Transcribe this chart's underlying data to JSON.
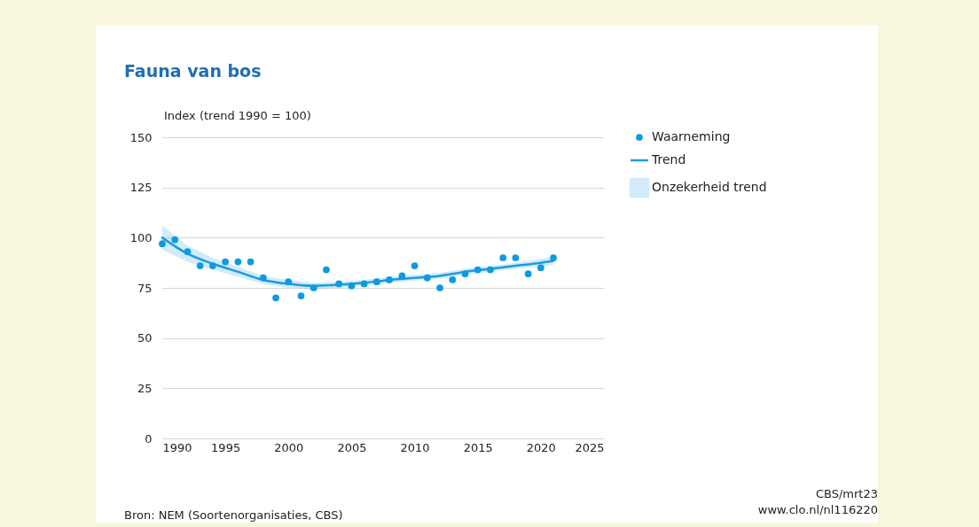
{
  "chart_data": {
    "type": "scatter",
    "title": "Fauna van bos",
    "ylabel": "Index (trend 1990 = 100)",
    "xlim": [
      1990,
      2025
    ],
    "xticks": [
      1990,
      1995,
      2000,
      2005,
      2010,
      2015,
      2020,
      2025
    ],
    "ylim": [
      0,
      150
    ],
    "yticks": [
      0,
      25,
      50,
      75,
      100,
      125,
      150
    ],
    "grid": "y",
    "legend": "top right",
    "marker": "circle",
    "series": [
      {
        "name": "Waarneming",
        "color": "#0f9ae0",
        "x": [
          1990,
          1991,
          1992,
          1993,
          1994,
          1995,
          1996,
          1997,
          1998,
          1999,
          2000,
          2001,
          2002,
          2003,
          2004,
          2005,
          2006,
          2007,
          2008,
          2009,
          2010,
          2011,
          2012,
          2013,
          2014,
          2015,
          2016,
          2017,
          2018,
          2019,
          2020,
          2021
        ],
        "values": [
          97,
          99,
          93,
          86,
          86,
          88,
          88,
          88,
          80,
          70,
          78,
          71,
          75,
          84,
          77,
          76,
          77,
          78,
          79,
          81,
          86,
          80,
          75,
          79,
          82,
          84,
          84,
          90,
          90,
          82,
          85,
          90
        ]
      },
      {
        "name": "Trend",
        "type": "line",
        "color": "#1a9be0",
        "line_style": "solid",
        "marker": "none",
        "x": [
          1990,
          1992,
          1994,
          1996,
          1998,
          2000,
          2002,
          2004,
          2006,
          2008,
          2010,
          2012,
          2014,
          2016,
          2018,
          2020,
          2021
        ],
        "values": [
          100,
          92,
          87,
          83,
          79,
          77,
          76,
          76.5,
          77.5,
          79,
          80,
          81,
          83,
          84.5,
          86,
          87.5,
          88.5
        ],
        "lower": [
          94,
          88,
          84,
          80.5,
          77,
          75,
          74.5,
          75,
          76,
          77.5,
          78.5,
          79.5,
          81.5,
          83,
          84.5,
          85.5,
          86.5
        ],
        "upper": [
          106,
          96,
          90,
          85.5,
          81,
          79,
          77.5,
          78,
          79,
          80.5,
          81.5,
          82.5,
          84.5,
          86,
          87.5,
          89.5,
          90.5
        ]
      }
    ],
    "annotations": [
      "Onzekerheid trend",
      "Bron: NEM (Soortenorganisaties, CBS)",
      "CBS/mrt23",
      "www.clo.nl/nl116220"
    ]
  }
}
